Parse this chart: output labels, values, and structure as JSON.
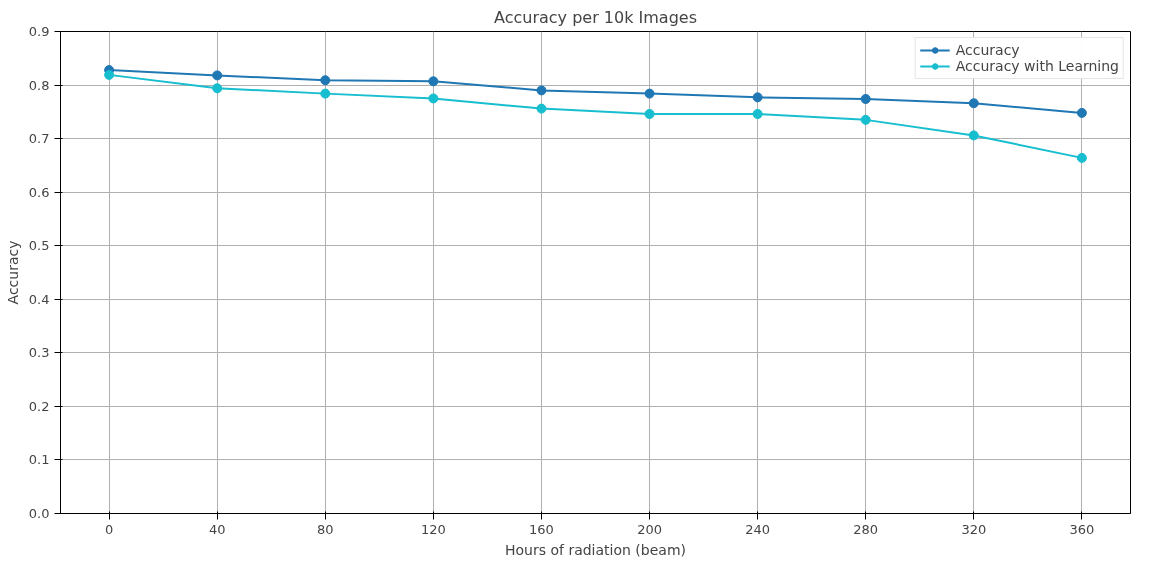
{
  "chart_data": {
    "type": "line",
    "title": "Accuracy per 10k Images",
    "xlabel": "Hours of radiation (beam)",
    "ylabel": "Accuracy",
    "x": [
      0,
      40,
      80,
      120,
      160,
      200,
      240,
      280,
      320,
      360
    ],
    "series": [
      {
        "name": "Accuracy",
        "color": "#1f77b4",
        "values": [
          0.828,
          0.818,
          0.809,
          0.807,
          0.79,
          0.784,
          0.777,
          0.774,
          0.766,
          0.748
        ]
      },
      {
        "name": "Accuracy with Learning",
        "color": "#17becf",
        "values": [
          0.819,
          0.794,
          0.784,
          0.775,
          0.756,
          0.746,
          0.746,
          0.735,
          0.706,
          0.664
        ]
      }
    ],
    "xlim": [
      -18,
      378
    ],
    "ylim": [
      0,
      0.9
    ],
    "xticks": [
      0,
      40,
      80,
      120,
      160,
      200,
      240,
      280,
      320,
      360
    ],
    "yticks": [
      {
        "value": 0,
        "label": "0.0"
      },
      {
        "value": 0.1,
        "label": "0.1"
      },
      {
        "value": 0.2,
        "label": "0.2"
      },
      {
        "value": 0.3,
        "label": "0.3"
      },
      {
        "value": 0.4,
        "label": "0.4"
      },
      {
        "value": 0.5,
        "label": "0.5"
      },
      {
        "value": 0.6,
        "label": "0.6"
      },
      {
        "value": 0.7,
        "label": "0.7"
      },
      {
        "value": 0.8,
        "label": "0.8"
      },
      {
        "value": 0.9,
        "label": "0.9"
      }
    ],
    "grid": true,
    "legend": "top right",
    "marker": "circle",
    "line_style": "solid"
  }
}
